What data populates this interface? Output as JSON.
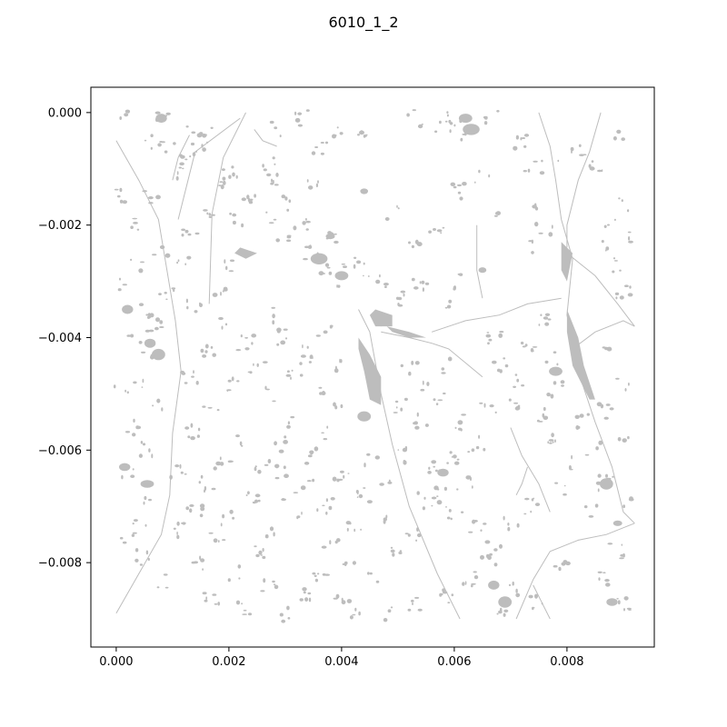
{
  "figure": {
    "title": "6010_1_2"
  },
  "chart_data": {
    "type": "map",
    "title": "6010_1_2",
    "xlabel": "",
    "ylabel": "",
    "xlim": [
      -0.00045,
      0.00955
    ],
    "ylim": [
      -0.0095,
      0.00045
    ],
    "x_ticks": [
      {
        "value": 0.0,
        "label": "0.000"
      },
      {
        "value": 0.002,
        "label": "0.002"
      },
      {
        "value": 0.004,
        "label": "0.004"
      },
      {
        "value": 0.006,
        "label": "0.006"
      },
      {
        "value": 0.008,
        "label": "0.008"
      }
    ],
    "y_ticks": [
      {
        "value": 0.0,
        "label": "0.000"
      },
      {
        "value": -0.002,
        "label": "−0.002"
      },
      {
        "value": -0.004,
        "label": "−0.004"
      },
      {
        "value": -0.006,
        "label": "−0.006"
      },
      {
        "value": -0.008,
        "label": "−0.008"
      }
    ],
    "feature_color": "#bdbdbd",
    "lines": [
      [
        [
          0.0,
          -0.0005
        ],
        [
          0.0004,
          -0.0012
        ],
        [
          0.00075,
          -0.0019
        ],
        [
          0.0009,
          -0.0028
        ],
        [
          0.00105,
          -0.0037
        ],
        [
          0.00115,
          -0.0046
        ],
        [
          0.001,
          -0.0057
        ],
        [
          0.00095,
          -0.0068
        ],
        [
          0.0008,
          -0.0075
        ],
        [
          0.0004,
          -0.0082
        ],
        [
          0.0,
          -0.0089
        ]
      ],
      [
        [
          0.0023,
          0.0
        ],
        [
          0.0019,
          -0.0008
        ],
        [
          0.0017,
          -0.0018
        ],
        [
          0.00165,
          -0.0034
        ]
      ],
      [
        [
          0.0022,
          -0.0001
        ],
        [
          0.0014,
          -0.0007
        ],
        [
          0.0011,
          -0.0019
        ]
      ],
      [
        [
          0.0013,
          -0.0004
        ],
        [
          0.0011,
          -0.0008
        ],
        [
          0.001,
          -0.0012
        ]
      ],
      [
        [
          0.00245,
          -0.0003
        ],
        [
          0.0026,
          -0.0005
        ],
        [
          0.00285,
          -0.0006
        ]
      ],
      [
        [
          0.0043,
          -0.0035
        ],
        [
          0.0045,
          -0.0039
        ],
        [
          0.0047,
          -0.005
        ],
        [
          0.0049,
          -0.0059
        ],
        [
          0.0052,
          -0.007
        ],
        [
          0.0057,
          -0.0082
        ],
        [
          0.0061,
          -0.009
        ]
      ],
      [
        [
          0.0047,
          -0.0039
        ],
        [
          0.0052,
          -0.004
        ],
        [
          0.0056,
          -0.0041
        ],
        [
          0.0059,
          -0.0042
        ],
        [
          0.0065,
          -0.0047
        ]
      ],
      [
        [
          0.0056,
          -0.0039
        ],
        [
          0.0062,
          -0.0037
        ],
        [
          0.0068,
          -0.0036
        ],
        [
          0.0073,
          -0.0034
        ],
        [
          0.0079,
          -0.0033
        ]
      ],
      [
        [
          0.0064,
          -0.002
        ],
        [
          0.0064,
          -0.0028
        ],
        [
          0.0065,
          -0.0033
        ]
      ],
      [
        [
          0.0075,
          0.0
        ],
        [
          0.0077,
          -0.0006
        ],
        [
          0.0078,
          -0.0012
        ],
        [
          0.0079,
          -0.0019
        ],
        [
          0.0081,
          -0.0026
        ],
        [
          0.008,
          -0.0036
        ],
        [
          0.0082,
          -0.0046
        ],
        [
          0.0085,
          -0.0055
        ],
        [
          0.0088,
          -0.0063
        ],
        [
          0.009,
          -0.0071
        ],
        [
          0.0092,
          -0.0073
        ]
      ],
      [
        [
          0.0086,
          0.0
        ],
        [
          0.0084,
          -0.0007
        ],
        [
          0.0082,
          -0.0012
        ],
        [
          0.008,
          -0.002
        ],
        [
          0.008,
          -0.0024
        ]
      ],
      [
        [
          0.008,
          -0.0025
        ],
        [
          0.0085,
          -0.0029
        ],
        [
          0.0089,
          -0.0034
        ],
        [
          0.0092,
          -0.0038
        ]
      ],
      [
        [
          0.0081,
          -0.0042
        ],
        [
          0.0085,
          -0.0039
        ],
        [
          0.009,
          -0.0037
        ],
        [
          0.0092,
          -0.0038
        ]
      ],
      [
        [
          0.0092,
          -0.0073
        ],
        [
          0.0087,
          -0.0075
        ],
        [
          0.0082,
          -0.0076
        ],
        [
          0.0077,
          -0.0078
        ],
        [
          0.0074,
          -0.0083
        ],
        [
          0.0071,
          -0.009
        ]
      ],
      [
        [
          0.007,
          -0.0056
        ],
        [
          0.0072,
          -0.0061
        ],
        [
          0.0075,
          -0.0066
        ],
        [
          0.0077,
          -0.0071
        ]
      ],
      [
        [
          0.0073,
          -0.0063
        ],
        [
          0.0072,
          -0.0066
        ],
        [
          0.0071,
          -0.0068
        ]
      ],
      [
        [
          0.0074,
          -0.0084
        ],
        [
          0.0076,
          -0.0088
        ],
        [
          0.0077,
          -0.009
        ]
      ]
    ],
    "polygons": [
      [
        [
          0.0043,
          -0.004
        ],
        [
          0.0045,
          -0.0043
        ],
        [
          0.0047,
          -0.0047
        ],
        [
          0.0047,
          -0.0052
        ],
        [
          0.0045,
          -0.0051
        ],
        [
          0.0044,
          -0.0046
        ],
        [
          0.0043,
          -0.0042
        ]
      ],
      [
        [
          0.0048,
          -0.0038
        ],
        [
          0.0052,
          -0.0039
        ],
        [
          0.0055,
          -0.004
        ],
        [
          0.0052,
          -0.004
        ],
        [
          0.0049,
          -0.0039
        ]
      ],
      [
        [
          0.0046,
          -0.0035
        ],
        [
          0.0049,
          -0.0036
        ],
        [
          0.0049,
          -0.0038
        ],
        [
          0.0046,
          -0.0038
        ],
        [
          0.0045,
          -0.0036
        ]
      ],
      [
        [
          0.0079,
          -0.0023
        ],
        [
          0.0081,
          -0.0025
        ],
        [
          0.008,
          -0.003
        ],
        [
          0.0079,
          -0.0028
        ]
      ],
      [
        [
          0.008,
          -0.0035
        ],
        [
          0.0082,
          -0.004
        ],
        [
          0.0083,
          -0.0045
        ],
        [
          0.0085,
          -0.0051
        ],
        [
          0.0084,
          -0.0051
        ],
        [
          0.0081,
          -0.0045
        ],
        [
          0.008,
          -0.0039
        ]
      ],
      [
        [
          0.0022,
          -0.0024
        ],
        [
          0.0025,
          -0.0025
        ],
        [
          0.0023,
          -0.0026
        ],
        [
          0.0021,
          -0.0025
        ]
      ]
    ],
    "spots": [
      [
        0.0002,
        -0.0001
      ],
      [
        0.0005,
        -0.0005
      ],
      [
        0.0008,
        -0.0001
      ],
      [
        0.0009,
        -0.0006
      ],
      [
        0.0014,
        -0.0003
      ],
      [
        0.0015,
        -0.0006
      ],
      [
        0.0017,
        -0.0004
      ],
      [
        0.0011,
        -0.0011
      ],
      [
        0.0012,
        -0.0009
      ],
      [
        0.0018,
        -0.0012
      ],
      [
        0.002,
        -0.0011
      ],
      [
        0.0027,
        -0.0009
      ],
      [
        0.0029,
        -0.0003
      ],
      [
        0.0033,
        -0.0001
      ],
      [
        0.0036,
        -0.0006
      ],
      [
        0.0039,
        -0.0003
      ],
      [
        0.0044,
        -0.0004
      ],
      [
        0.0053,
        -0.0001
      ],
      [
        0.0058,
        -0.0003
      ],
      [
        0.006,
        -0.0001
      ],
      [
        0.0062,
        -0.0004
      ],
      [
        0.0067,
        -0.0001
      ],
      [
        0.0072,
        -0.0005
      ],
      [
        0.0074,
        -0.0009
      ],
      [
        0.0077,
        -0.001
      ],
      [
        0.0082,
        -0.0007
      ],
      [
        0.0085,
        -0.0009
      ],
      [
        0.0089,
        -0.0004
      ],
      [
        0.009,
        -0.0016
      ],
      [
        0.0088,
        -0.002
      ],
      [
        0.0091,
        -0.0022
      ],
      [
        0.0074,
        -0.0016
      ],
      [
        0.0076,
        -0.0021
      ],
      [
        0.0073,
        -0.0024
      ],
      [
        0.0086,
        -0.0024
      ],
      [
        0.0089,
        -0.0027
      ],
      [
        0.009,
        -0.0032
      ],
      [
        0.0076,
        -0.0037
      ],
      [
        0.0073,
        -0.0041
      ],
      [
        0.0077,
        -0.0044
      ],
      [
        0.0072,
        -0.0048
      ],
      [
        0.0078,
        -0.0049
      ],
      [
        0.0088,
        -0.0042
      ],
      [
        0.009,
        -0.0048
      ],
      [
        0.0087,
        -0.0053
      ],
      [
        0.009,
        -0.0057
      ],
      [
        0.0087,
        -0.0066
      ],
      [
        0.009,
        -0.0069
      ],
      [
        0.0089,
        -0.0078
      ],
      [
        0.0087,
        -0.0083
      ],
      [
        0.009,
        -0.0087
      ],
      [
        0.0079,
        -0.0081
      ],
      [
        0.0075,
        -0.0087
      ],
      [
        0.0071,
        -0.0085
      ],
      [
        0.0069,
        -0.0088
      ],
      [
        0.0066,
        -0.008
      ],
      [
        0.0063,
        -0.0083
      ],
      [
        0.0067,
        -0.0077
      ],
      [
        0.0064,
        -0.0074
      ],
      [
        0.006,
        -0.0071
      ],
      [
        0.0058,
        -0.0068
      ],
      [
        0.0062,
        -0.0066
      ],
      [
        0.0057,
        -0.0063
      ],
      [
        0.0055,
        -0.0069
      ],
      [
        0.0059,
        -0.0086
      ],
      [
        0.0053,
        -0.0087
      ],
      [
        0.0048,
        -0.0089
      ],
      [
        0.0045,
        -0.0083
      ],
      [
        0.0041,
        -0.008
      ],
      [
        0.0038,
        -0.0077
      ],
      [
        0.0042,
        -0.0074
      ],
      [
        0.0037,
        -0.007
      ],
      [
        0.0033,
        -0.0072
      ],
      [
        0.0031,
        -0.0068
      ],
      [
        0.0028,
        -0.0074
      ],
      [
        0.0025,
        -0.0078
      ],
      [
        0.0021,
        -0.0082
      ],
      [
        0.0017,
        -0.0086
      ],
      [
        0.0015,
        -0.008
      ],
      [
        0.0018,
        -0.0076
      ],
      [
        0.0014,
        -0.0071
      ],
      [
        0.0016,
        -0.0066
      ],
      [
        0.0019,
        -0.0062
      ],
      [
        0.0023,
        -0.0058
      ],
      [
        0.0026,
        -0.0063
      ],
      [
        0.0029,
        -0.0059
      ],
      [
        0.0032,
        -0.0055
      ],
      [
        0.0035,
        -0.0061
      ],
      [
        0.0038,
        -0.0057
      ],
      [
        0.004,
        -0.0053
      ],
      [
        0.0036,
        -0.0049
      ],
      [
        0.0032,
        -0.0046
      ],
      [
        0.0028,
        -0.005
      ],
      [
        0.0025,
        -0.0045
      ],
      [
        0.0021,
        -0.0048
      ],
      [
        0.0017,
        -0.0052
      ],
      [
        0.0014,
        -0.0057
      ],
      [
        0.0013,
        -0.0047
      ],
      [
        0.0016,
        -0.0042
      ],
      [
        0.0019,
        -0.0038
      ],
      [
        0.0023,
        -0.0041
      ],
      [
        0.0027,
        -0.0036
      ],
      [
        0.003,
        -0.004
      ],
      [
        0.0034,
        -0.0043
      ],
      [
        0.0037,
        -0.0039
      ],
      [
        0.0039,
        -0.0045
      ],
      [
        0.0052,
        -0.0045
      ],
      [
        0.0055,
        -0.0048
      ],
      [
        0.005,
        -0.0052
      ],
      [
        0.0054,
        -0.0055
      ],
      [
        0.0057,
        -0.0051
      ],
      [
        0.0061,
        -0.0055
      ],
      [
        0.0064,
        -0.0059
      ],
      [
        0.006,
        -0.0061
      ],
      [
        0.0066,
        -0.0052
      ],
      [
        0.0068,
        -0.0045
      ],
      [
        0.0067,
        -0.004
      ],
      [
        0.0059,
        -0.0045
      ],
      [
        0.005,
        -0.0033
      ],
      [
        0.0054,
        -0.0031
      ],
      [
        0.0058,
        -0.0034
      ],
      [
        0.0061,
        -0.003
      ],
      [
        0.0047,
        -0.003
      ],
      [
        0.0044,
        -0.0028
      ],
      [
        0.0041,
        -0.0026
      ],
      [
        0.0039,
        -0.003
      ],
      [
        0.0037,
        -0.0028
      ],
      [
        0.0035,
        -0.0025
      ],
      [
        0.0038,
        -0.0022
      ],
      [
        0.0033,
        -0.002
      ],
      [
        0.003,
        -0.0023
      ],
      [
        0.0027,
        -0.0019
      ],
      [
        0.0031,
        -0.0016
      ],
      [
        0.0035,
        -0.0013
      ],
      [
        0.0028,
        -0.0012
      ],
      [
        0.0024,
        -0.0015
      ],
      [
        0.0021,
        -0.0019
      ],
      [
        0.002,
        -0.0027
      ],
      [
        0.0018,
        -0.0031
      ],
      [
        0.0014,
        -0.0034
      ],
      [
        0.0012,
        -0.0026
      ],
      [
        0.0013,
        -0.0021
      ],
      [
        0.0016,
        -0.0018
      ],
      [
        0.0049,
        -0.0018
      ],
      [
        0.0053,
        -0.0024
      ],
      [
        0.0057,
        -0.0021
      ],
      [
        0.0061,
        -0.0014
      ],
      [
        0.0065,
        -0.0011
      ],
      [
        0.0068,
        -0.0017
      ],
      [
        0.0003,
        -0.002
      ],
      [
        0.0004,
        -0.0027
      ],
      [
        0.0002,
        -0.0031
      ],
      [
        0.0005,
        -0.0035
      ],
      [
        0.0003,
        -0.004
      ],
      [
        0.0006,
        -0.0044
      ],
      [
        0.0004,
        -0.0048
      ],
      [
        0.0007,
        -0.0052
      ],
      [
        0.0003,
        -0.0056
      ],
      [
        0.0005,
        -0.006
      ],
      [
        0.0002,
        -0.0064
      ],
      [
        0.0006,
        -0.0068
      ],
      [
        0.0004,
        -0.0072
      ],
      [
        0.0002,
        -0.0076
      ],
      [
        0.0005,
        -0.0079
      ],
      [
        0.0008,
        -0.0083
      ],
      [
        0.0001,
        -0.0049
      ],
      [
        0.0007,
        -0.0038
      ],
      [
        0.0009,
        -0.0032
      ],
      [
        0.0008,
        -0.0024
      ],
      [
        0.0001,
        -0.0015
      ],
      [
        0.0006,
        -0.0015
      ],
      [
        0.0045,
        -0.0062
      ],
      [
        0.0048,
        -0.0066
      ],
      [
        0.0051,
        -0.0061
      ],
      [
        0.0047,
        -0.0072
      ],
      [
        0.005,
        -0.0078
      ],
      [
        0.0053,
        -0.0075
      ],
      [
        0.0044,
        -0.0068
      ],
      [
        0.004,
        -0.0064
      ],
      [
        0.0034,
        -0.0066
      ],
      [
        0.0029,
        -0.0064
      ],
      [
        0.0024,
        -0.0069
      ],
      [
        0.002,
        -0.0072
      ],
      [
        0.0011,
        -0.0064
      ],
      [
        0.0011,
        -0.0074
      ],
      [
        0.0036,
        -0.0082
      ],
      [
        0.0033,
        -0.0086
      ],
      [
        0.0027,
        -0.0084
      ],
      [
        0.0023,
        -0.0088
      ],
      [
        0.003,
        -0.0089
      ],
      [
        0.004,
        -0.0087
      ],
      [
        0.0043,
        -0.0089
      ],
      [
        0.007,
        -0.0073
      ],
      [
        0.0074,
        -0.007
      ],
      [
        0.0079,
        -0.0067
      ],
      [
        0.0082,
        -0.0062
      ],
      [
        0.0084,
        -0.0071
      ],
      [
        0.0078,
        -0.0058
      ],
      [
        0.0075,
        -0.0054
      ],
      [
        0.0071,
        -0.0052
      ],
      [
        0.0083,
        -0.0055
      ],
      [
        0.0085,
        -0.006
      ]
    ],
    "blobs": [
      [
        0.00075,
        -0.0043,
        0.00012,
        0.0001
      ],
      [
        0.0006,
        -0.0041,
        0.0001,
        8e-05
      ],
      [
        0.00055,
        -0.0066,
        0.00012,
        7e-05
      ],
      [
        0.00015,
        -0.0063,
        0.0001,
        7e-05
      ],
      [
        0.0078,
        -0.0046,
        0.00012,
        8e-05
      ],
      [
        0.0087,
        -0.0066,
        0.00012,
        0.0001
      ],
      [
        0.0062,
        -0.0001,
        0.00012,
        8e-05
      ],
      [
        0.0063,
        -0.0003,
        0.00015,
        0.0001
      ],
      [
        0.0008,
        -0.0001,
        0.0001,
        8e-05
      ],
      [
        0.0047,
        -0.0037,
        0.00014,
        0.0001
      ],
      [
        0.0036,
        -0.0026,
        0.00015,
        0.0001
      ],
      [
        0.004,
        -0.0029,
        0.00012,
        8e-05
      ],
      [
        0.0044,
        -0.0054,
        0.00012,
        9e-05
      ],
      [
        0.0069,
        -0.0087,
        0.00012,
        0.0001
      ],
      [
        0.0067,
        -0.0084,
        0.0001,
        8e-05
      ],
      [
        0.0044,
        -0.0014,
        7e-05,
        5e-05
      ],
      [
        0.0065,
        -0.0028,
        7e-05,
        5e-05
      ],
      [
        0.0038,
        -0.0022,
        8e-05,
        5e-05
      ],
      [
        0.0089,
        -0.0073,
        8e-05,
        5e-05
      ],
      [
        0.0002,
        -0.0035,
        0.0001,
        8e-05
      ],
      [
        0.0088,
        -0.0087,
        0.0001,
        7e-05
      ],
      [
        0.0058,
        -0.0064,
        0.0001,
        7e-05
      ]
    ]
  }
}
